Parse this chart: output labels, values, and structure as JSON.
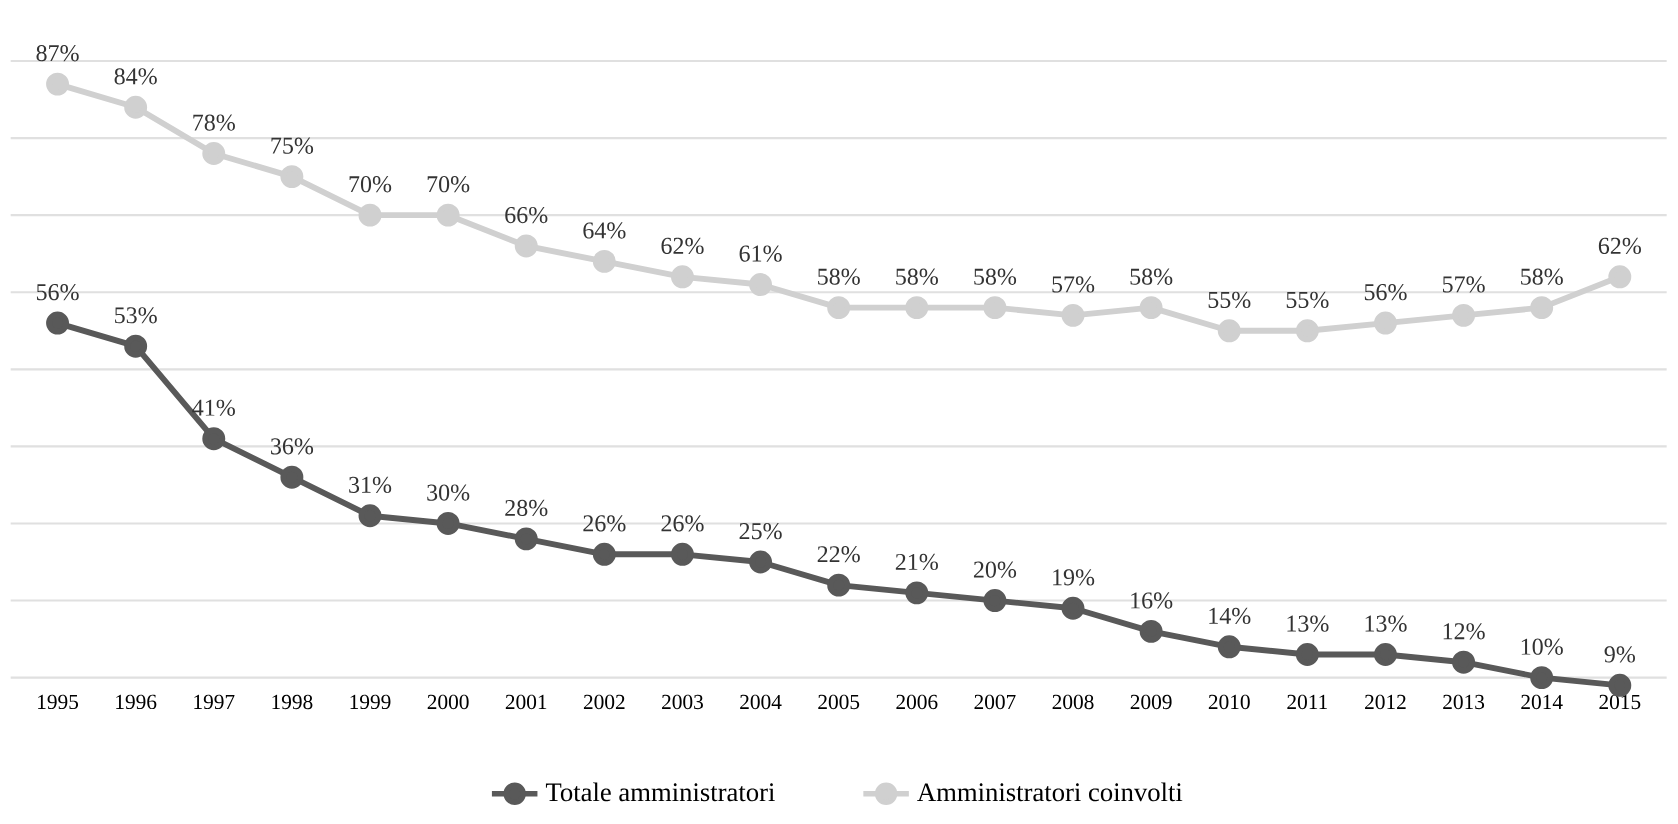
{
  "chart_data": {
    "type": "line",
    "categories": [
      "1995",
      "1996",
      "1997",
      "1998",
      "1999",
      "2000",
      "2001",
      "2002",
      "2003",
      "2004",
      "2005",
      "2006",
      "2007",
      "2008",
      "2009",
      "2010",
      "2011",
      "2012",
      "2013",
      "2014",
      "2015"
    ],
    "series": [
      {
        "name": "Totale amministratori",
        "color": "#595959",
        "values": [
          56,
          53,
          41,
          36,
          31,
          30,
          28,
          26,
          26,
          25,
          22,
          21,
          20,
          19,
          16,
          14,
          13,
          13,
          12,
          10,
          9
        ],
        "value_labels": [
          "56%",
          "53%",
          "41%",
          "36%",
          "31%",
          "30%",
          "28%",
          "26%",
          "26%",
          "25%",
          "22%",
          "21%",
          "20%",
          "19%",
          "16%",
          "14%",
          "13%",
          "13%",
          "12%",
          "10%",
          "9%"
        ]
      },
      {
        "name": "Amministratori coinvolti",
        "color": "#d0d0d0",
        "values": [
          87,
          84,
          78,
          75,
          70,
          70,
          66,
          64,
          62,
          61,
          58,
          58,
          58,
          57,
          58,
          55,
          55,
          56,
          57,
          58,
          62
        ],
        "value_labels": [
          "87%",
          "84%",
          "78%",
          "75%",
          "70%",
          "70%",
          "66%",
          "64%",
          "62%",
          "61%",
          "58%",
          "58%",
          "58%",
          "57%",
          "58%",
          "55%",
          "55%",
          "56%",
          "57%",
          "58%",
          "62%"
        ]
      }
    ],
    "tick_labels": "x",
    "grid": "y",
    "legend": "bottom",
    "marker": "circle",
    "line_style": "solid"
  }
}
